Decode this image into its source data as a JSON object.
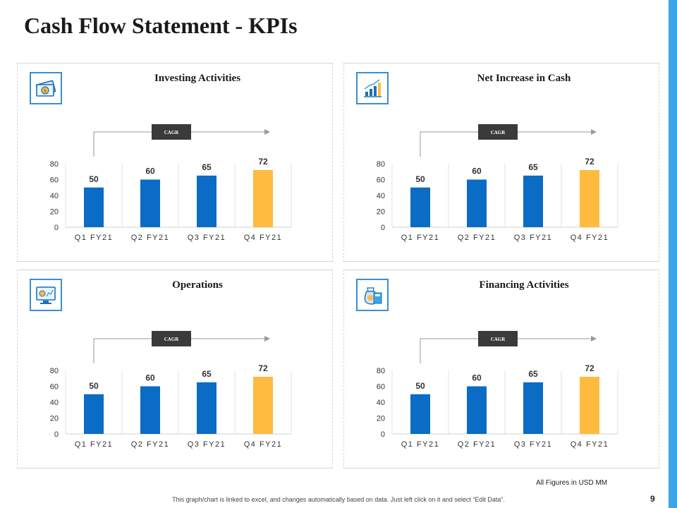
{
  "page": {
    "title": "Cash Flow Statement - KPIs",
    "footnote": "All Figures in USD MM",
    "disclaimer": "This graph/chart is linked to excel, and changes automatically based on data. Just left click on it and select “Edit Data”.",
    "page_number": "9"
  },
  "colors": {
    "bar": "#0a6cc4",
    "highlight": "#ffbb3f",
    "accent": "#3aa6e8",
    "badge": "#3a3a3a"
  },
  "chart_data": [
    {
      "type": "bar",
      "title": "Investing Activities",
      "icon": "money-bill-icon",
      "badge": "CAGR",
      "categories": [
        "Q1 FY21",
        "Q2 FY21",
        "Q3 FY21",
        "Q4 FY21"
      ],
      "values": [
        50,
        60,
        65,
        72
      ],
      "data_labels": [
        "50",
        "60",
        "65",
        "72"
      ],
      "yticks": [
        "0",
        "20",
        "40",
        "60",
        "80"
      ],
      "ylim": [
        0,
        80
      ],
      "highlight_index": 3,
      "grid": true
    },
    {
      "type": "bar",
      "title": "Net Increase in Cash",
      "icon": "growth-chart-icon",
      "badge": "CAGR",
      "categories": [
        "Q1 FY21",
        "Q2 FY21",
        "Q3 FY21",
        "Q4 FY21"
      ],
      "values": [
        50,
        60,
        65,
        72
      ],
      "data_labels": [
        "50",
        "60",
        "65",
        "72"
      ],
      "yticks": [
        "0",
        "20",
        "40",
        "60",
        "80"
      ],
      "ylim": [
        0,
        80
      ],
      "highlight_index": 3,
      "grid": true
    },
    {
      "type": "bar",
      "title": "Operations",
      "icon": "monitor-dashboard-icon",
      "badge": "CAGR",
      "categories": [
        "Q1 FY21",
        "Q2 FY21",
        "Q3 FY21",
        "Q4 FY21"
      ],
      "values": [
        50,
        60,
        65,
        72
      ],
      "data_labels": [
        "50",
        "60",
        "65",
        "72"
      ],
      "yticks": [
        "0",
        "20",
        "40",
        "60",
        "80"
      ],
      "ylim": [
        0,
        80
      ],
      "highlight_index": 3,
      "grid": true
    },
    {
      "type": "bar",
      "title": "Financing Activities",
      "icon": "money-bag-calculator-icon",
      "badge": "CAGR",
      "categories": [
        "Q1 FY21",
        "Q2 FY21",
        "Q3 FY21",
        "Q4 FY21"
      ],
      "values": [
        50,
        60,
        65,
        72
      ],
      "data_labels": [
        "50",
        "60",
        "65",
        "72"
      ],
      "yticks": [
        "0",
        "20",
        "40",
        "60",
        "80"
      ],
      "ylim": [
        0,
        80
      ],
      "highlight_index": 3,
      "grid": true
    }
  ]
}
